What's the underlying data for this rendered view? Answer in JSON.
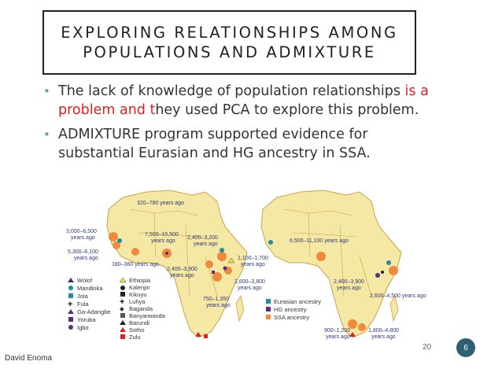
{
  "slide": {
    "title_line1": "EXPLORING RELATIONSHIPS AMONG",
    "title_line2": "POPULATIONS AND ADMIXTURE",
    "bullet1": {
      "part1": "The lack of  knowledge of population relationships ",
      "part2_red": "is a",
      "part3_red": "problem  and t",
      "part4": "hey  used PCA to explore this problem."
    },
    "bullet2": "ADMIXTURE program supported evidence for substantial Eurasian and HG ancestry in SSA.",
    "footer_author": "David Enoma",
    "footer_number": "20",
    "page_number": "6"
  },
  "figure": {
    "left_map_labels": [
      "3,000–6,500",
      "years ago",
      "5,300–6,100",
      "years ago",
      "320–780 years ago",
      "7,500–10,500",
      "years ago",
      "2,400–3,200",
      "years ago",
      "180–360 years ago",
      "2,400–3,900",
      "years ago",
      "1,100–1,700",
      "years ago",
      "2,600–3,800",
      "years ago",
      "750–1,350",
      "years ago"
    ],
    "right_map_labels": [
      "6,500–11,100 years ago",
      "2,400–3,900",
      "years ago",
      "2,600–4,500 years ago",
      "900–1,200",
      "years ago",
      "1,800–4,800",
      "years ago"
    ],
    "legend_populations_col1": [
      "Wolof",
      "Mandinka",
      "Jola",
      "Fula",
      "Ga-Adangbe",
      "Yoruba",
      "Igbo"
    ],
    "legend_populations_col2": [
      "Ethiopia",
      "Kalenjin",
      "Kikuyu",
      "Luhya",
      "Baganda",
      "Banyarwanda",
      "Barundi",
      "Sotho",
      "Zulu"
    ],
    "legend_ancestry": [
      "Eurasian ancestry",
      "HG ancestry",
      "SSA ancestry"
    ],
    "colors": {
      "land": "#f4e8a4",
      "border": "#c9a24b",
      "ocean": "#ffffff",
      "ssa": "#f08a3a",
      "eurasian": "#1f8fa0",
      "hg": "#5a2d78",
      "label": "#2f3a7a",
      "accent_red": "#e02020"
    }
  }
}
